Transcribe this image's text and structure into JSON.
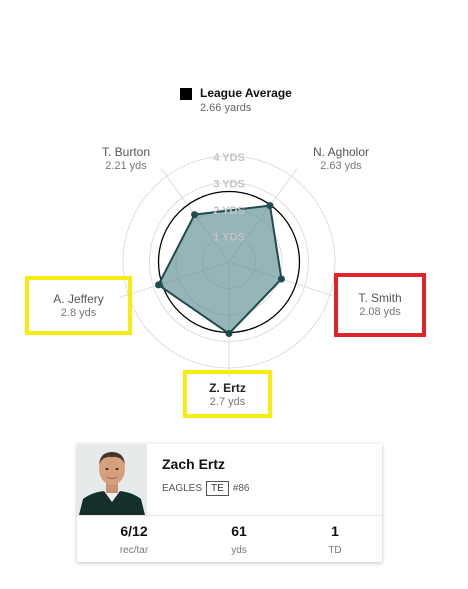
{
  "legend": {
    "title": "League Average",
    "value": "2.66 yards",
    "color": "#000000"
  },
  "chart_data": {
    "type": "radar",
    "unit": "yds",
    "axes": [
      "N. Agholor",
      "T. Smith",
      "Z. Ertz",
      "A. Jeffery",
      "T. Burton"
    ],
    "values": [
      2.63,
      2.08,
      2.7,
      2.8,
      2.21
    ],
    "value_labels": [
      "2.63 yds",
      "2.08 yds",
      "2.7 yds",
      "2.8 yds",
      "2.21 yds"
    ],
    "ring_labels": [
      "1 YDS",
      "2 YDS",
      "3 YDS",
      "4 YDS"
    ],
    "ring_values": [
      1,
      2,
      3,
      4
    ],
    "rmax": 4,
    "reference": {
      "name": "League Average",
      "value": 2.66
    },
    "colors": {
      "fill": "#5d8e93",
      "stroke": "#1d4b4e",
      "reference": "#000000",
      "grid": "#dddddd",
      "ring_label": "#c4c4c4"
    },
    "highlights": {
      "yellow": [
        "Z. Ertz",
        "A. Jeffery"
      ],
      "red": [
        "T. Smith"
      ]
    }
  },
  "player_card": {
    "name": "Zach Ertz",
    "team": "EAGLES",
    "position": "TE",
    "number": "#86",
    "stats": [
      {
        "value": "6/12",
        "label": "rec/tar"
      },
      {
        "value": "61",
        "label": "yds"
      },
      {
        "value": "1",
        "label": "TD"
      }
    ]
  }
}
